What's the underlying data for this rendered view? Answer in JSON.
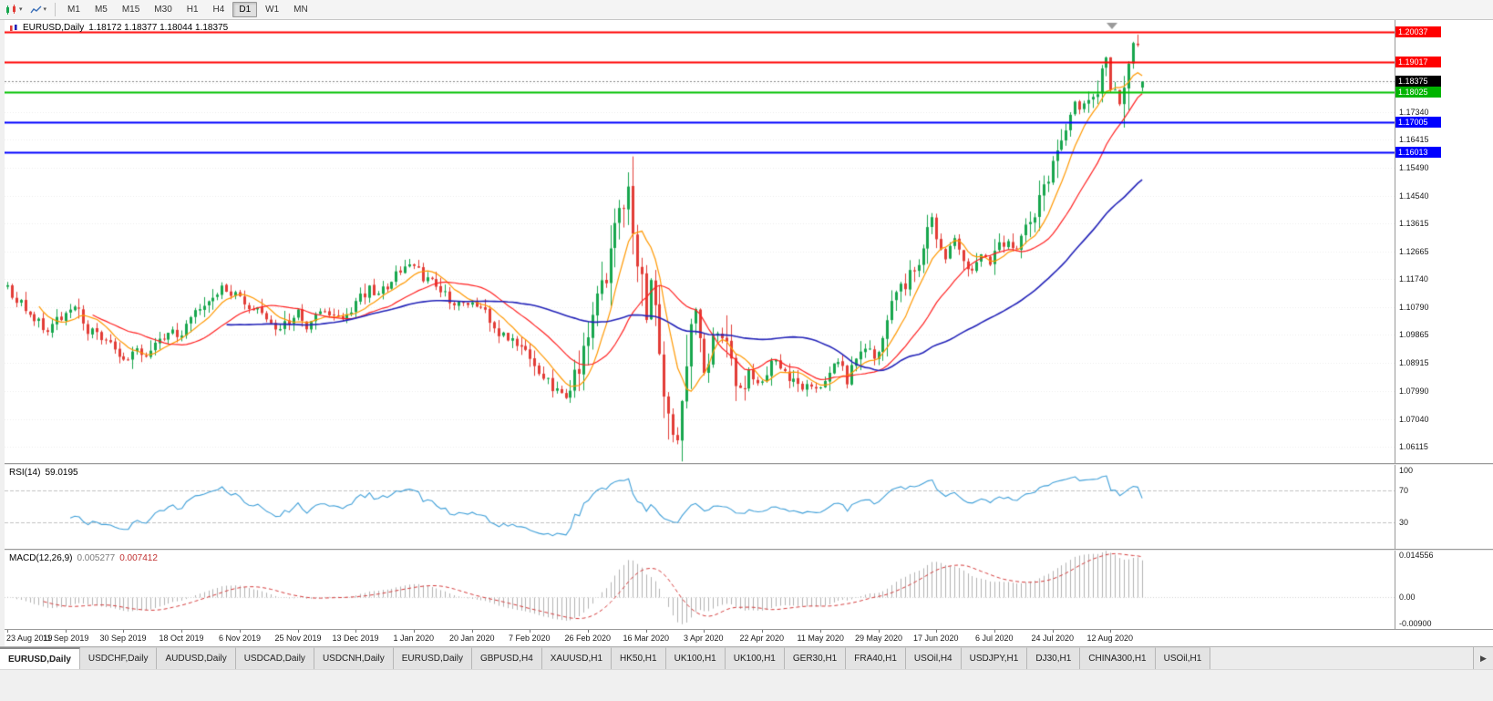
{
  "icons": {
    "caret_down": "▾",
    "tab_scroll_right": "▶"
  },
  "toolbar": {
    "timeframes": [
      {
        "label": "M1",
        "active": false
      },
      {
        "label": "M5",
        "active": false
      },
      {
        "label": "M15",
        "active": false
      },
      {
        "label": "M30",
        "active": false
      },
      {
        "label": "H1",
        "active": false
      },
      {
        "label": "H4",
        "active": false
      },
      {
        "label": "D1",
        "active": true
      },
      {
        "label": "W1",
        "active": false
      },
      {
        "label": "MN",
        "active": false
      }
    ]
  },
  "chart": {
    "title": "EURUSD,Daily",
    "ohlc_text": "1.18172 1.18377 1.18044 1.18375"
  },
  "price_axis": {
    "labels": [
      "1.18315",
      "1.17340",
      "1.16415",
      "1.15490",
      "1.14540",
      "1.13615",
      "1.12665",
      "1.11740",
      "1.10790",
      "1.09865",
      "1.08915",
      "1.07990",
      "1.07040",
      "1.06115"
    ]
  },
  "indicators": {
    "rsi": {
      "name": "RSI(14)",
      "value": "59.0195",
      "axis_labels": [
        "100",
        "70",
        "30"
      ],
      "levels": [
        70,
        30
      ],
      "color": "#3f9fd8"
    },
    "macd": {
      "name": "MACD(12,26,9)",
      "value_main": "0.005277",
      "value_signal": "0.007412",
      "axis_labels": [
        "0.014556",
        "0.00",
        "-0.00900"
      ]
    }
  },
  "time_axis": {
    "labels": [
      "23 Aug 2019",
      "11 Sep 2019",
      "30 Sep 2019",
      "18 Oct 2019",
      "6 Nov 2019",
      "25 Nov 2019",
      "13 Dec 2019",
      "1 Jan 2020",
      "20 Jan 2020",
      "7 Feb 2020",
      "26 Feb 2020",
      "16 Mar 2020",
      "3 Apr 2020",
      "22 Apr 2020",
      "11 May 2020",
      "29 May 2020",
      "17 Jun 2020",
      "6 Jul 2020",
      "24 Jul 2020",
      "12 Aug 2020"
    ]
  },
  "tabs": [
    {
      "label": "EURUSD,Daily",
      "active": true
    },
    {
      "label": "USDCHF,Daily",
      "active": false
    },
    {
      "label": "AUDUSD,Daily",
      "active": false
    },
    {
      "label": "USDCAD,Daily",
      "active": false
    },
    {
      "label": "USDCNH,Daily",
      "active": false
    },
    {
      "label": "EURUSD,Daily",
      "active": false
    },
    {
      "label": "GBPUSD,H4",
      "active": false
    },
    {
      "label": "XAUUSD,H1",
      "active": false
    },
    {
      "label": "HK50,H1",
      "active": false
    },
    {
      "label": "UK100,H1",
      "active": false
    },
    {
      "label": "UK100,H1",
      "active": false
    },
    {
      "label": "GER30,H1",
      "active": false
    },
    {
      "label": "FRA40,H1",
      "active": false
    },
    {
      "label": "USOil,H4",
      "active": false
    },
    {
      "label": "USDJPY,H1",
      "active": false
    },
    {
      "label": "DJ30,H1",
      "active": false
    },
    {
      "label": "CHINA300,H1",
      "active": false
    },
    {
      "label": "USOil,H1",
      "active": false
    }
  ],
  "chart_data": {
    "type": "candlestick",
    "symbol": "EURUSD",
    "period": "Daily",
    "bars": 255,
    "bar_start_date": "23 Aug 2019",
    "bar_end_date": "21 Aug 2020",
    "current_ohlc": {
      "open": 1.18172,
      "high": 1.18377,
      "low": 1.18044,
      "close": 1.18375
    },
    "y_range": [
      1.0556,
      1.2044
    ],
    "candle_colors": {
      "up": "#17a64d",
      "down": "#e23c36"
    },
    "horizontal_lines": [
      {
        "price": 1.20037,
        "color": "#ff0000",
        "width": 2,
        "style": "solid",
        "tag_bg": "#ff0000"
      },
      {
        "price": 1.19017,
        "color": "#ff0000",
        "width": 2,
        "style": "solid",
        "tag_bg": "#ff0000"
      },
      {
        "price": 1.18375,
        "color": "#888888",
        "width": 1,
        "style": "dot",
        "tag_bg": "#000000",
        "role": "current_price"
      },
      {
        "price": 1.18025,
        "color": "#00c000",
        "width": 2,
        "style": "solid",
        "tag_bg": "#00b400"
      },
      {
        "price": 1.17005,
        "color": "#0000ff",
        "width": 2,
        "style": "solid",
        "tag_bg": "#0000ff"
      },
      {
        "price": 1.16013,
        "color": "#0000ff",
        "width": 2,
        "style": "solid",
        "tag_bg": "#0000ff"
      }
    ],
    "moving_averages": [
      {
        "period": 8,
        "color": "#ff9800",
        "width": 1.2
      },
      {
        "period": 20,
        "color": "#ff2020",
        "width": 1.2
      },
      {
        "period": 50,
        "color": "#2323b8",
        "width": 1.6
      }
    ],
    "rsi": {
      "period": 14,
      "current": 59.0195
    },
    "macd": {
      "fast": 12,
      "slow": 26,
      "signal_period": 9,
      "current_main": 0.005277,
      "current_signal": 0.007412
    },
    "price_path": [
      [
        0,
        1.115
      ],
      [
        3,
        1.1085
      ],
      [
        6,
        1.104
      ],
      [
        9,
        1.1
      ],
      [
        12,
        1.1045
      ],
      [
        15,
        1.1075
      ],
      [
        18,
        1.101
      ],
      [
        21,
        1.097
      ],
      [
        24,
        1.094
      ],
      [
        27,
        1.0893
      ],
      [
        29,
        1.094
      ],
      [
        31,
        1.0905
      ],
      [
        34,
        1.0975
      ],
      [
        37,
        1.1
      ],
      [
        39,
        1.0975
      ],
      [
        42,
        1.105
      ],
      [
        45,
        1.1105
      ],
      [
        48,
        1.115
      ],
      [
        51,
        1.112
      ],
      [
        54,
        1.1075
      ],
      [
        57,
        1.1078
      ],
      [
        59,
        1.1015
      ],
      [
        61,
        1.0995
      ],
      [
        63,
        1.1035
      ],
      [
        65,
        1.1065
      ],
      [
        67,
        1.1015
      ],
      [
        70,
        1.106
      ],
      [
        73,
        1.106
      ],
      [
        75,
        1.1035
      ],
      [
        78,
        1.1085
      ],
      [
        81,
        1.1145
      ],
      [
        83,
        1.112
      ],
      [
        86,
        1.1175
      ],
      [
        89,
        1.1215
      ],
      [
        91,
        1.1225
      ],
      [
        93,
        1.118
      ],
      [
        96,
        1.115
      ],
      [
        99,
        1.1105
      ],
      [
        102,
        1.1085
      ],
      [
        105,
        1.1095
      ],
      [
        108,
        1.103
      ],
      [
        111,
        1.0985
      ],
      [
        114,
        1.095
      ],
      [
        117,
        1.0905
      ],
      [
        120,
        1.085
      ],
      [
        123,
        1.08
      ],
      [
        125,
        1.079
      ],
      [
        127,
        1.0845
      ],
      [
        129,
        1.094
      ],
      [
        131,
        1.1055
      ],
      [
        133,
        1.113
      ],
      [
        135,
        1.128
      ],
      [
        137,
        1.138
      ],
      [
        139,
        1.1495
      ],
      [
        140,
        1.135
      ],
      [
        141,
        1.128
      ],
      [
        142,
        1.113
      ],
      [
        143,
        1.106
      ],
      [
        144,
        1.118
      ],
      [
        145,
        1.105
      ],
      [
        146,
        1.092
      ],
      [
        147,
        1.079
      ],
      [
        148,
        1.072
      ],
      [
        149,
        1.0645
      ],
      [
        150,
        1.069
      ],
      [
        151,
        1.081
      ],
      [
        152,
        1.088
      ],
      [
        153,
        1.102
      ],
      [
        154,
        1.108
      ],
      [
        155,
        1.097
      ],
      [
        156,
        1.088
      ],
      [
        158,
        1.096
      ],
      [
        160,
        1.099
      ],
      [
        162,
        1.087
      ],
      [
        164,
        1.08
      ],
      [
        166,
        1.086
      ],
      [
        168,
        1.083
      ],
      [
        170,
        1.087
      ],
      [
        172,
        1.091
      ],
      [
        174,
        1.0865
      ],
      [
        176,
        1.083
      ],
      [
        178,
        1.0795
      ],
      [
        180,
        1.082
      ],
      [
        182,
        1.0805
      ],
      [
        184,
        1.0845
      ],
      [
        186,
        1.089
      ],
      [
        188,
        1.082
      ],
      [
        190,
        1.089
      ],
      [
        192,
        1.095
      ],
      [
        194,
        1.092
      ],
      [
        196,
        1.0985
      ],
      [
        198,
        1.108
      ],
      [
        200,
        1.1135
      ],
      [
        202,
        1.118
      ],
      [
        204,
        1.125
      ],
      [
        206,
        1.133
      ],
      [
        207,
        1.1375
      ],
      [
        208,
        1.13
      ],
      [
        210,
        1.1245
      ],
      [
        212,
        1.1305
      ],
      [
        214,
        1.1245
      ],
      [
        216,
        1.1205
      ],
      [
        218,
        1.125
      ],
      [
        220,
        1.1225
      ],
      [
        222,
        1.128
      ],
      [
        224,
        1.131
      ],
      [
        226,
        1.1275
      ],
      [
        228,
        1.133
      ],
      [
        230,
        1.1405
      ],
      [
        232,
        1.1475
      ],
      [
        234,
        1.156
      ],
      [
        236,
        1.165
      ],
      [
        238,
        1.172
      ],
      [
        239,
        1.178
      ],
      [
        240,
        1.174
      ],
      [
        242,
        1.177
      ],
      [
        244,
        1.181
      ],
      [
        245,
        1.187
      ],
      [
        246,
        1.1905
      ],
      [
        247,
        1.184
      ],
      [
        248,
        1.178
      ],
      [
        249,
        1.1755
      ],
      [
        250,
        1.182
      ],
      [
        251,
        1.188
      ],
      [
        252,
        1.1935
      ],
      [
        253,
        1.1965
      ],
      [
        254,
        1.18375
      ]
    ]
  }
}
